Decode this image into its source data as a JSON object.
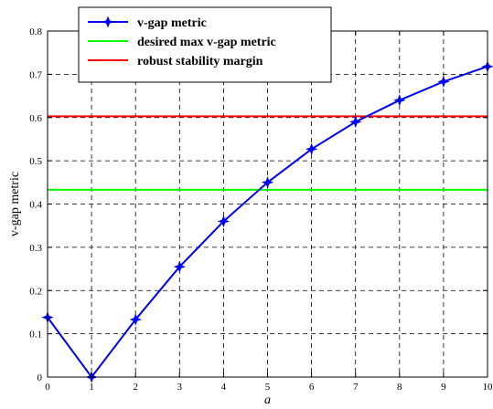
{
  "chart_data": {
    "type": "line",
    "title": "",
    "xlabel": "a",
    "ylabel": "v-gap metric",
    "xlim": [
      0,
      10
    ],
    "ylim": [
      0,
      0.8
    ],
    "xticks": [
      0,
      1,
      2,
      3,
      4,
      5,
      6,
      7,
      8,
      9,
      10
    ],
    "yticks": [
      0,
      0.1,
      0.2,
      0.3,
      0.4,
      0.5,
      0.6,
      0.7,
      0.8
    ],
    "xtick_labels": [
      "0",
      "1",
      "2",
      "3",
      "4",
      "5",
      "6",
      "7",
      "8",
      "9",
      "10"
    ],
    "ytick_labels": [
      "0",
      "0.1",
      "0.2",
      "0.3",
      "0.4",
      "0.5",
      "0.6",
      "0.7",
      "0.8"
    ],
    "grid": true,
    "legend_position": "top-left",
    "series": [
      {
        "name": "v-gap metric",
        "color": "#0000ff",
        "marker": "star",
        "x": [
          0,
          1,
          2,
          3,
          4,
          5,
          6,
          7,
          8,
          9,
          10
        ],
        "y": [
          0.138,
          0.0,
          0.133,
          0.255,
          0.36,
          0.45,
          0.527,
          0.59,
          0.64,
          0.683,
          0.718
        ]
      },
      {
        "name": "desired max v-gap metric",
        "color": "#00ff00",
        "marker": "none",
        "x": [
          0,
          10
        ],
        "y": [
          0.433,
          0.433
        ]
      },
      {
        "name": "robust stability margin",
        "color": "#ff0000",
        "marker": "none",
        "x": [
          0,
          10
        ],
        "y": [
          0.603,
          0.603
        ]
      }
    ]
  }
}
